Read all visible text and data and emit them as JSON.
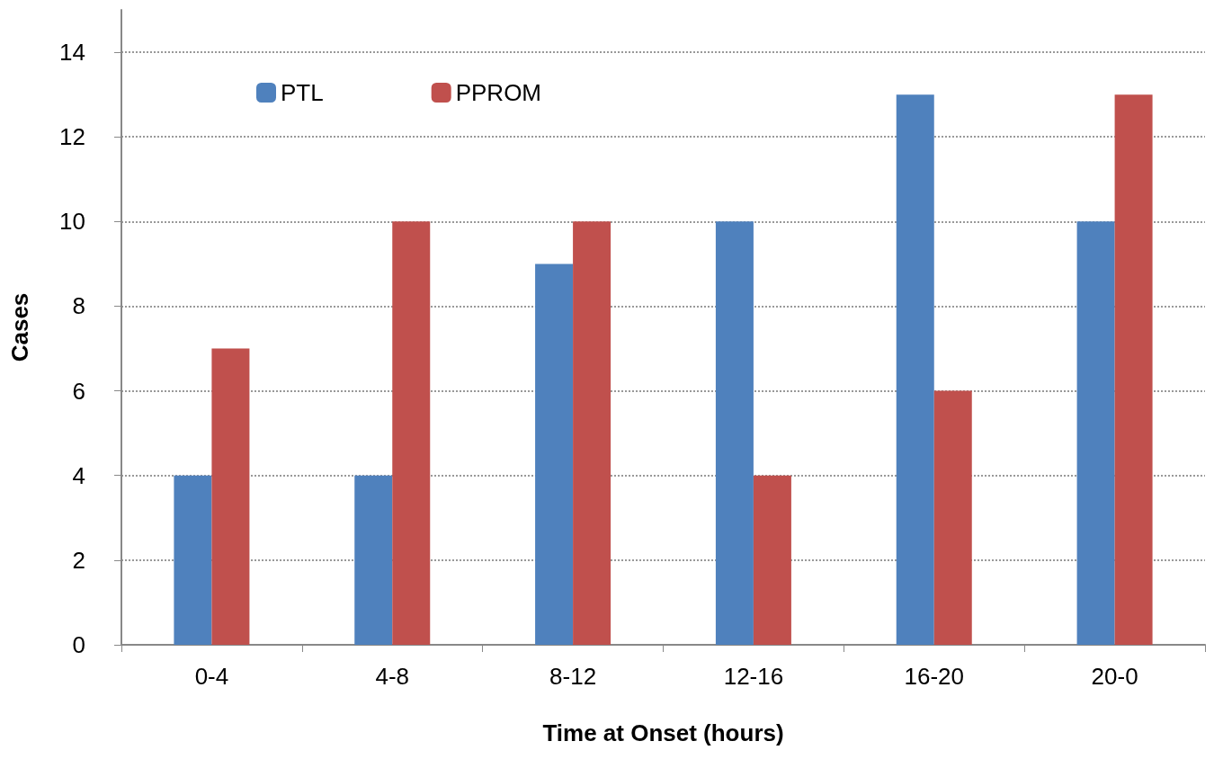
{
  "chart_data": {
    "type": "bar",
    "xlabel": "Time at Onset (hours)",
    "ylabel": "Cases",
    "categories": [
      "0-4",
      "4-8",
      "8-12",
      "12-16",
      "16-20",
      "20-0"
    ],
    "series": [
      {
        "name": "PTL",
        "color": "#4f81bd",
        "values": [
          4,
          4,
          9,
          10,
          13,
          10
        ]
      },
      {
        "name": "PPROM",
        "color": "#c0504d",
        "values": [
          7,
          10,
          10,
          4,
          6,
          13
        ]
      }
    ],
    "ylim": [
      0,
      15
    ],
    "yticks": [
      0,
      2,
      4,
      6,
      8,
      10,
      12,
      14
    ],
    "grid": "y",
    "legend": "top left"
  }
}
